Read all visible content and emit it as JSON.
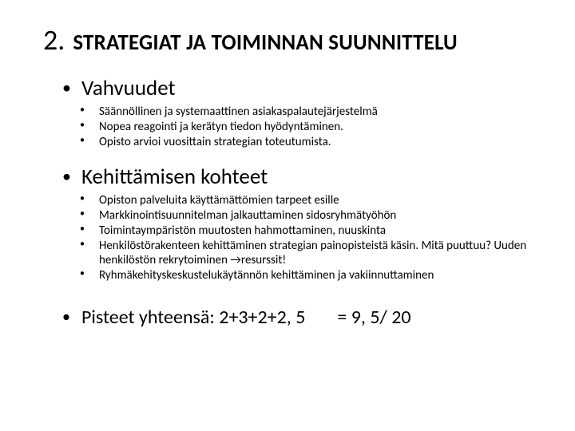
{
  "title": {
    "number": "2.",
    "text": "STRATEGIAT JA TOIMINNAN SUUNNITTELU"
  },
  "sections": {
    "vahvuudet": {
      "heading": "Vahvuudet",
      "items": [
        "Säännöllinen  ja systemaattinen asiakaspalautejärjestelmä",
        "Nopea reagointi ja kerätyn tiedon hyödyntäminen.",
        "Opisto arvioi vuosittain strategian toteutumista."
      ]
    },
    "kehittamisen": {
      "heading": "Kehittämisen kohteet",
      "items": [
        "Opiston palveluita käyttämättömien tarpeet esille",
        "Markkinointisuunnitelman jalkauttaminen sidosryhmätyöhön",
        "Toimintaympäristön muutosten hahmottaminen, nuuskinta",
        "Henkilöstörakenteen kehittäminen strategian painopisteistä käsin. Mitä puuttuu? Uuden henkilöstön rekrytoiminen →resurssit!",
        "Ryhmäkehityskeskustelukäytännön kehittäminen ja vakiinnuttaminen"
      ]
    }
  },
  "score": {
    "left": "Pisteet yhteensä: 2+3+2+2, 5",
    "right": "=  9, 5/ 20"
  },
  "style": {
    "background_color": "#ffffff",
    "text_color": "#000000",
    "title_num_fontsize": 36,
    "title_text_fontsize": 27,
    "main_bullet_fontsize": 27,
    "sub_item_fontsize": 15,
    "score_fontsize": 24,
    "font_family": "Calibri"
  }
}
